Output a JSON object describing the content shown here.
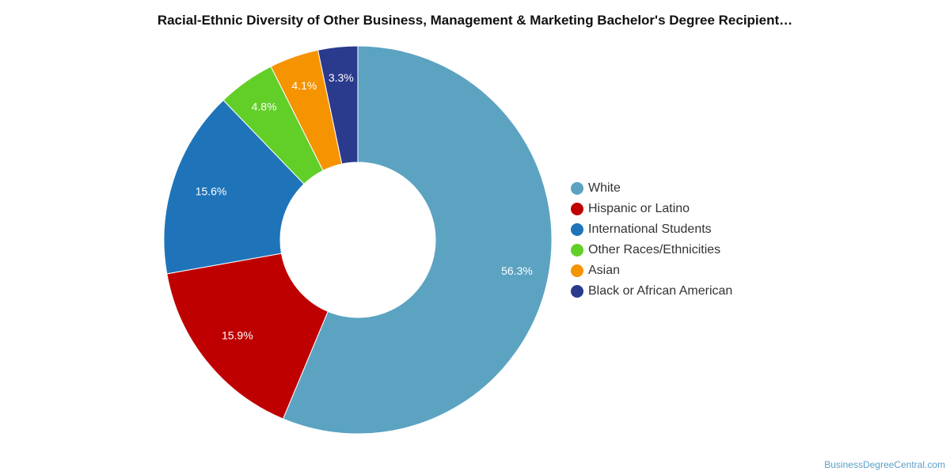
{
  "chart_data": {
    "type": "pie",
    "title": "Racial-Ethnic Diversity of Other Business, Management & Marketing Bachelor's Degree Recipient…",
    "donut": true,
    "legend_position": "right",
    "slices": [
      {
        "name": "White",
        "value": 56.3,
        "label": "56.3%",
        "color": "#5ba3c1"
      },
      {
        "name": "Hispanic or Latino",
        "value": 15.9,
        "label": "15.9%",
        "color": "#bf0000"
      },
      {
        "name": "International Students",
        "value": 15.6,
        "label": "15.6%",
        "color": "#1f74b9"
      },
      {
        "name": "Other Races/Ethnicities",
        "value": 4.8,
        "label": "4.8%",
        "color": "#62cf28"
      },
      {
        "name": "Asian",
        "value": 4.1,
        "label": "4.1%",
        "color": "#f59300"
      },
      {
        "name": "Black or African American",
        "value": 3.3,
        "label": "3.3%",
        "color": "#2a3a8c"
      }
    ]
  },
  "credit": "BusinessDegreeCentral.com"
}
